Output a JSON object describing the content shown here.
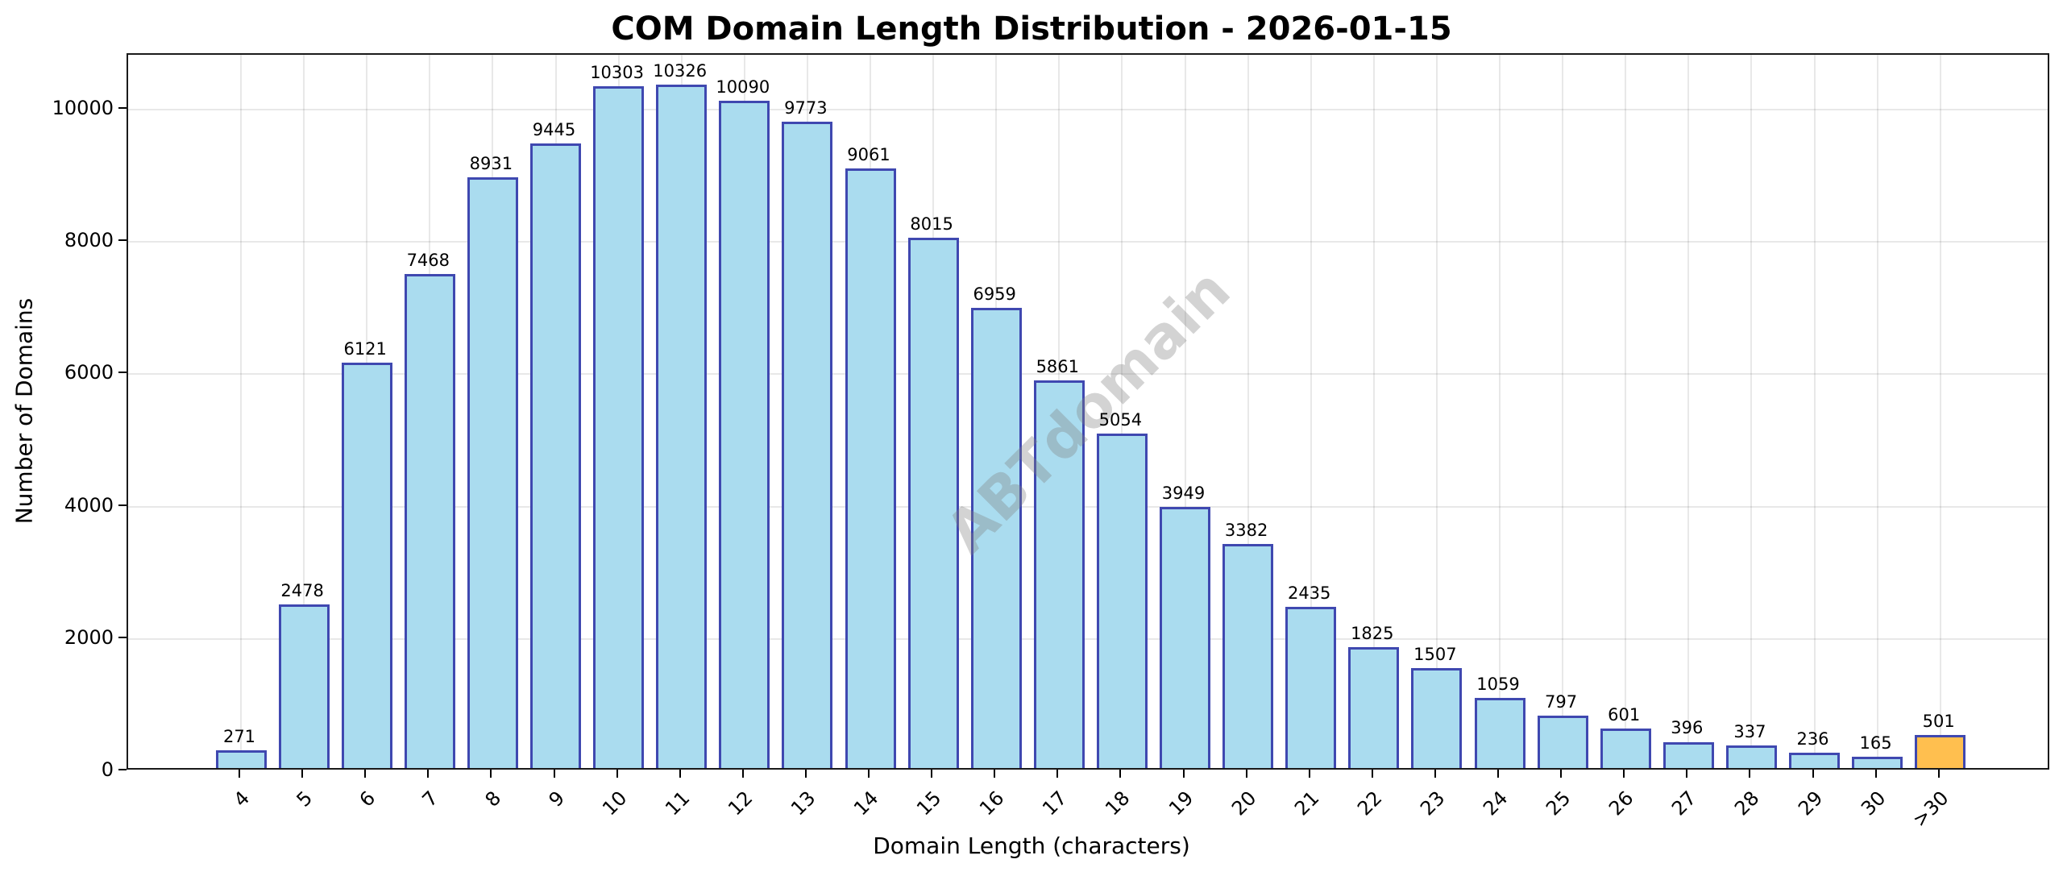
{
  "chart_data": {
    "type": "bar",
    "title": "COM Domain Length Distribution - 2026-01-15",
    "xlabel": "Domain Length (characters)",
    "ylabel": "Number of Domains",
    "categories": [
      "4",
      "5",
      "6",
      "7",
      "8",
      "9",
      "10",
      "11",
      "12",
      "13",
      "14",
      "15",
      "16",
      "17",
      "18",
      "19",
      "20",
      "21",
      "22",
      "23",
      "24",
      "25",
      "26",
      "27",
      "28",
      "29",
      "30",
      ">30"
    ],
    "values": [
      271,
      2478,
      6121,
      7468,
      8931,
      9445,
      10303,
      10326,
      10090,
      9773,
      9061,
      8015,
      6959,
      5861,
      5054,
      3949,
      3382,
      2435,
      1825,
      1507,
      1059,
      797,
      601,
      396,
      337,
      236,
      165,
      501
    ],
    "bar_colors": {
      "default": "#aadcef",
      "highlight": "#ffbf4f",
      "edge": "#3f48b0",
      "highlight_category": ">30"
    },
    "yticks": [
      0,
      2000,
      4000,
      6000,
      8000,
      10000
    ],
    "ylim": [
      0,
      10828
    ],
    "grid": true,
    "legend": null,
    "watermark": "ABTdomain"
  }
}
